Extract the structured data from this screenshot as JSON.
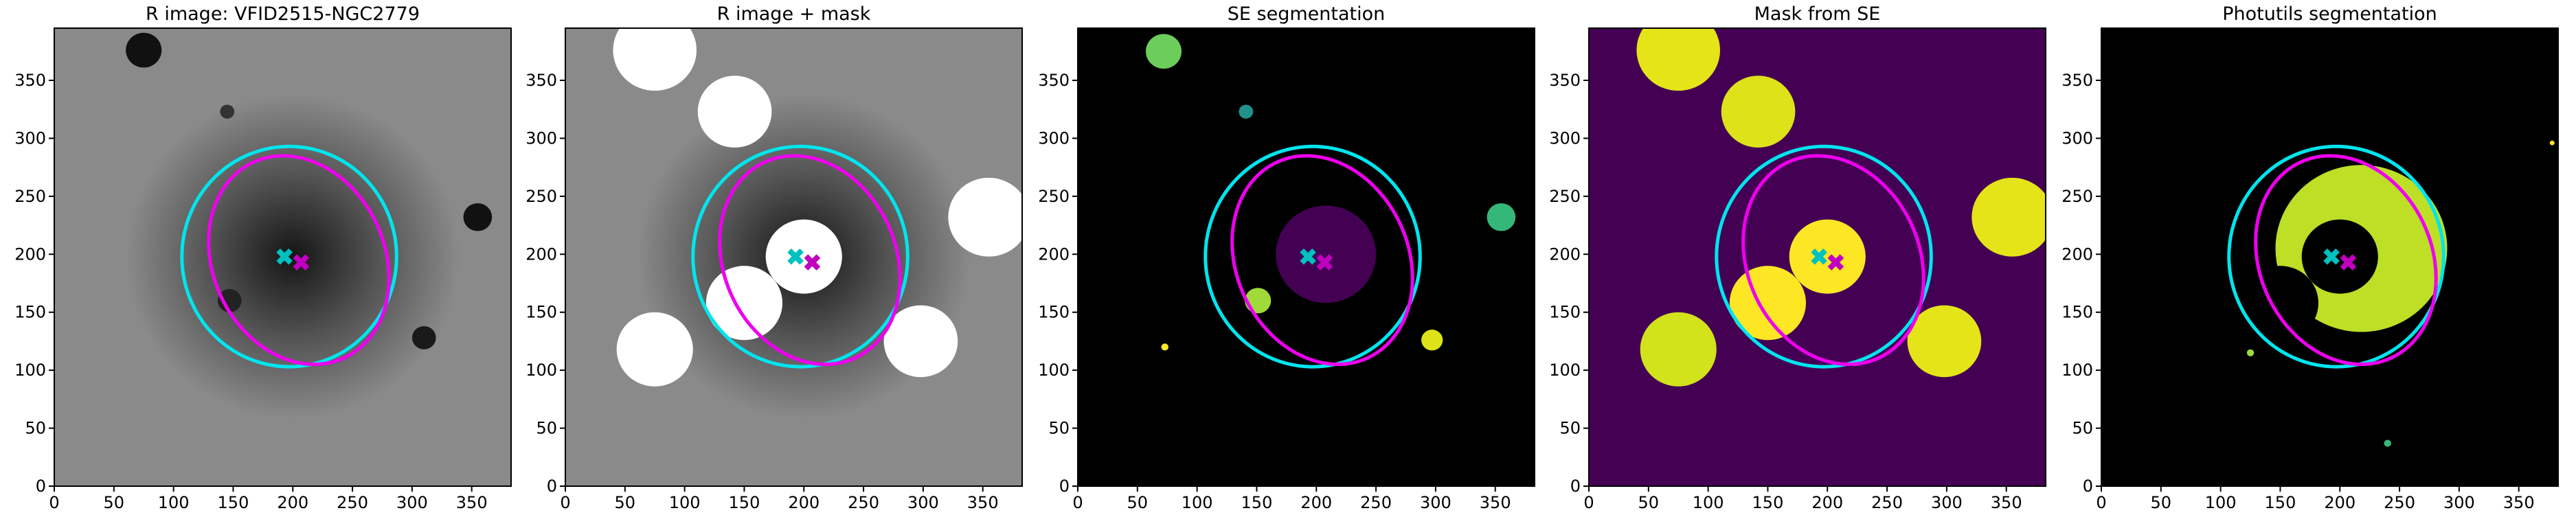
{
  "chart_data": [
    {
      "type": "image",
      "title": "R image: VFID2515-NGC2779",
      "xlim": [
        0,
        383
      ],
      "ylim": [
        0,
        395
      ],
      "xticks": [
        0,
        50,
        100,
        150,
        200,
        250,
        300,
        350
      ],
      "yticks": [
        0,
        50,
        100,
        150,
        200,
        250,
        300,
        350
      ],
      "background": "#8a8a8a",
      "halo": true,
      "circles": [
        {
          "x": 200,
          "y": 198,
          "r": 70,
          "color": "#2a2a2a"
        },
        {
          "x": 75,
          "y": 376,
          "r": 15,
          "color": "#111111"
        },
        {
          "x": 355,
          "y": 232,
          "r": 12,
          "color": "#111111"
        },
        {
          "x": 310,
          "y": 128,
          "r": 10,
          "color": "#1a1a1a"
        },
        {
          "x": 147,
          "y": 160,
          "r": 10,
          "color": "#222222"
        },
        {
          "x": 145,
          "y": 323,
          "r": 6,
          "color": "#333333"
        }
      ],
      "ellipses": [
        {
          "x": 197,
          "y": 198,
          "rx": 90,
          "ry": 95,
          "angle": 0,
          "color": "#00e5ee"
        },
        {
          "x": 205,
          "y": 195,
          "rx": 72,
          "ry": 93,
          "angle": 25,
          "color": "#ee00ee"
        }
      ],
      "markers": [
        {
          "x": 193,
          "y": 198,
          "color": "#00c0c0"
        },
        {
          "x": 207,
          "y": 193,
          "color": "#c000c0"
        }
      ]
    },
    {
      "type": "image",
      "title": "R image + mask",
      "xlim": [
        0,
        383
      ],
      "ylim": [
        0,
        395
      ],
      "xticks": [
        0,
        50,
        100,
        150,
        200,
        250,
        300,
        350
      ],
      "yticks": [
        0,
        50,
        100,
        150,
        200,
        250,
        300,
        350
      ],
      "background": "#8a8a8a",
      "halo": true,
      "circles": [
        {
          "x": 200,
          "y": 198,
          "r": 70,
          "color": "#2a2a2a"
        },
        {
          "x": 75,
          "y": 376,
          "r": 35,
          "color": "#ffffff"
        },
        {
          "x": 142,
          "y": 323,
          "r": 31,
          "color": "#ffffff"
        },
        {
          "x": 200,
          "y": 198,
          "r": 32,
          "color": "#ffffff"
        },
        {
          "x": 150,
          "y": 158,
          "r": 32,
          "color": "#ffffff"
        },
        {
          "x": 75,
          "y": 118,
          "r": 32,
          "color": "#ffffff"
        },
        {
          "x": 298,
          "y": 125,
          "r": 31,
          "color": "#ffffff"
        },
        {
          "x": 355,
          "y": 232,
          "r": 34,
          "color": "#ffffff"
        }
      ],
      "ellipses": [
        {
          "x": 197,
          "y": 198,
          "rx": 90,
          "ry": 95,
          "angle": 0,
          "color": "#00e5ee"
        },
        {
          "x": 205,
          "y": 195,
          "rx": 72,
          "ry": 93,
          "angle": 25,
          "color": "#ee00ee"
        }
      ],
      "markers": [
        {
          "x": 193,
          "y": 198,
          "color": "#00c0c0"
        },
        {
          "x": 207,
          "y": 193,
          "color": "#c000c0"
        }
      ]
    },
    {
      "type": "image",
      "title": "SE segmentation",
      "xlim": [
        0,
        383
      ],
      "ylim": [
        0,
        395
      ],
      "xticks": [
        0,
        50,
        100,
        150,
        200,
        250,
        300,
        350
      ],
      "yticks": [
        0,
        50,
        100,
        150,
        200,
        250,
        300,
        350
      ],
      "background": "#000000",
      "halo": false,
      "circles": [
        {
          "x": 72,
          "y": 375,
          "r": 15,
          "color": "#6ccd5a"
        },
        {
          "x": 141,
          "y": 323,
          "r": 6,
          "color": "#21918c"
        },
        {
          "x": 208,
          "y": 200,
          "r": 42,
          "color": "#440154"
        },
        {
          "x": 151,
          "y": 160,
          "r": 11,
          "color": "#a0da39"
        },
        {
          "x": 355,
          "y": 232,
          "r": 12,
          "color": "#35b779"
        },
        {
          "x": 297,
          "y": 126,
          "r": 9,
          "color": "#dde318"
        },
        {
          "x": 73,
          "y": 120,
          "r": 3,
          "color": "#fde725"
        }
      ],
      "ellipses": [
        {
          "x": 197,
          "y": 198,
          "rx": 90,
          "ry": 95,
          "angle": 0,
          "color": "#00e5ee"
        },
        {
          "x": 205,
          "y": 195,
          "rx": 72,
          "ry": 93,
          "angle": 25,
          "color": "#ee00ee"
        }
      ],
      "markers": [
        {
          "x": 193,
          "y": 198,
          "color": "#00c0c0"
        },
        {
          "x": 207,
          "y": 193,
          "color": "#c000c0"
        }
      ]
    },
    {
      "type": "image",
      "title": "Mask from SE",
      "xlim": [
        0,
        383
      ],
      "ylim": [
        0,
        395
      ],
      "xticks": [
        0,
        50,
        100,
        150,
        200,
        250,
        300,
        350
      ],
      "yticks": [
        0,
        50,
        100,
        150,
        200,
        250,
        300,
        350
      ],
      "background": "#440154",
      "halo": false,
      "circles": [
        {
          "x": 75,
          "y": 376,
          "r": 35,
          "color": "#e5e419"
        },
        {
          "x": 142,
          "y": 323,
          "r": 31,
          "color": "#dde318"
        },
        {
          "x": 200,
          "y": 198,
          "r": 32,
          "color": "#fde725"
        },
        {
          "x": 150,
          "y": 158,
          "r": 32,
          "color": "#fde725"
        },
        {
          "x": 75,
          "y": 118,
          "r": 32,
          "color": "#d2e21b"
        },
        {
          "x": 298,
          "y": 125,
          "r": 31,
          "color": "#e5e419"
        },
        {
          "x": 355,
          "y": 232,
          "r": 34,
          "color": "#e5e419"
        }
      ],
      "ellipses": [
        {
          "x": 197,
          "y": 198,
          "rx": 90,
          "ry": 95,
          "angle": 0,
          "color": "#00e5ee"
        },
        {
          "x": 205,
          "y": 195,
          "rx": 72,
          "ry": 93,
          "angle": 25,
          "color": "#ee00ee"
        }
      ],
      "markers": [
        {
          "x": 193,
          "y": 198,
          "color": "#00c0c0"
        },
        {
          "x": 207,
          "y": 193,
          "color": "#c000c0"
        }
      ]
    },
    {
      "type": "image",
      "title": "Photutils segmentation",
      "xlim": [
        0,
        383
      ],
      "ylim": [
        0,
        395
      ],
      "xticks": [
        0,
        50,
        100,
        150,
        200,
        250,
        300,
        350
      ],
      "yticks": [
        0,
        50,
        100,
        150,
        200,
        250,
        300,
        350
      ],
      "background": "#000000",
      "halo": false,
      "circles": [
        {
          "x": 218,
          "y": 205,
          "r": 72,
          "color": "#bddf26"
        },
        {
          "x": 200,
          "y": 198,
          "r": 32,
          "color": "#000000"
        },
        {
          "x": 150,
          "y": 158,
          "r": 32,
          "color": "#000000"
        },
        {
          "x": 125,
          "y": 115,
          "r": 3,
          "color": "#a0da39"
        },
        {
          "x": 240,
          "y": 37,
          "r": 3,
          "color": "#35b779"
        },
        {
          "x": 378,
          "y": 296,
          "r": 2,
          "color": "#fde725"
        }
      ],
      "ellipses": [
        {
          "x": 197,
          "y": 198,
          "rx": 90,
          "ry": 95,
          "angle": 0,
          "color": "#00e5ee"
        },
        {
          "x": 205,
          "y": 195,
          "rx": 72,
          "ry": 93,
          "angle": 25,
          "color": "#ee00ee"
        }
      ],
      "markers": [
        {
          "x": 193,
          "y": 198,
          "color": "#00c0c0"
        },
        {
          "x": 207,
          "y": 193,
          "color": "#c000c0"
        }
      ]
    }
  ]
}
